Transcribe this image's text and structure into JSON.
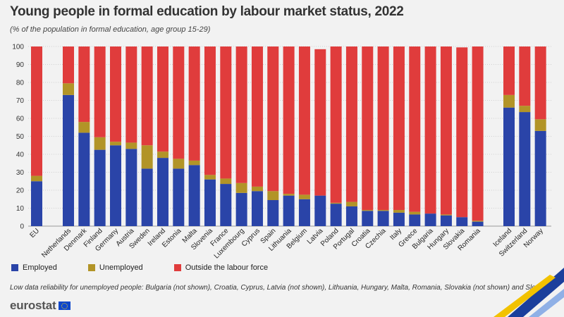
{
  "title": "Young people in formal education by labour market status, 2022",
  "subtitle": "(% of the population in formal education, age group 15-29)",
  "footnote": "Low data reliability for unemployed people: Bulgaria (not shown), Croatia, Cyprus, Latvia (not shown), Lithuania, Hungary, Malta, Romania, Slovakia (not shown) and Slovenia",
  "brand": {
    "logo_text": "eurostat"
  },
  "colors": {
    "employed": "#2a44a8",
    "unemployed": "#b29427",
    "outside": "#e03c3c",
    "grid": "#d0d0d0",
    "background": "#f2f2f2"
  },
  "chart_data": {
    "type": "bar",
    "stacked": true,
    "ylim": [
      0,
      100
    ],
    "yticks": [
      0,
      10,
      20,
      30,
      40,
      50,
      60,
      70,
      80,
      90,
      100
    ],
    "grid": true,
    "legend_position": "bottom-left",
    "groups": [
      {
        "categories": [
          "EU"
        ]
      },
      {
        "categories": [
          "Netherlands",
          "Denmark",
          "Finland",
          "Germany",
          "Austria",
          "Sweden",
          "Ireland",
          "Estonia",
          "Malta",
          "Slovenia",
          "France",
          "Luxembourg",
          "Cyprus",
          "Spain",
          "Lithuania",
          "Belgium",
          "Latvia",
          "Poland",
          "Portugal",
          "Croatia",
          "Czechia",
          "Italy",
          "Greece",
          "Bulgaria",
          "Hungary",
          "Slovakia",
          "Romania"
        ]
      },
      {
        "categories": [
          "Iceland",
          "Switzerland",
          "Norway"
        ]
      }
    ],
    "categories": [
      "EU",
      "Netherlands",
      "Denmark",
      "Finland",
      "Germany",
      "Austria",
      "Sweden",
      "Ireland",
      "Estonia",
      "Malta",
      "Slovenia",
      "France",
      "Luxembourg",
      "Cyprus",
      "Spain",
      "Lithuania",
      "Belgium",
      "Latvia",
      "Poland",
      "Portugal",
      "Croatia",
      "Czechia",
      "Italy",
      "Greece",
      "Bulgaria",
      "Hungary",
      "Slovakia",
      "Romania",
      "Iceland",
      "Switzerland",
      "Norway"
    ],
    "series": [
      {
        "name": "Employed",
        "color_key": "employed",
        "values": [
          25,
          73,
          52,
          42.5,
          45,
          43,
          32,
          38,
          32,
          34,
          26,
          23.5,
          18.5,
          19.5,
          14.5,
          17,
          15,
          17,
          12.5,
          11,
          8.5,
          8.5,
          7.5,
          6.5,
          7,
          6,
          5,
          2.5,
          66,
          63.5,
          53
        ]
      },
      {
        "name": "Unemployed",
        "color_key": "unemployed",
        "values": [
          3,
          6.5,
          6,
          7,
          2,
          3.5,
          13,
          3.5,
          5.5,
          2.5,
          2.5,
          3,
          5.5,
          2.5,
          5,
          1,
          2.5,
          0,
          0.5,
          2.5,
          0.5,
          0.5,
          1.5,
          1.5,
          0,
          0.5,
          0,
          0.5,
          7,
          3.5,
          6.5
        ]
      },
      {
        "name": "Outside the labour force",
        "color_key": "outside",
        "values": [
          72,
          20.5,
          42,
          50.5,
          53,
          53.5,
          55,
          58.5,
          62.5,
          63.5,
          71.5,
          73.5,
          76,
          78,
          80.5,
          82,
          82.5,
          81.5,
          87,
          86.5,
          91,
          91,
          91,
          92,
          93,
          93.5,
          94.5,
          97,
          27,
          33,
          40.5
        ]
      }
    ]
  }
}
